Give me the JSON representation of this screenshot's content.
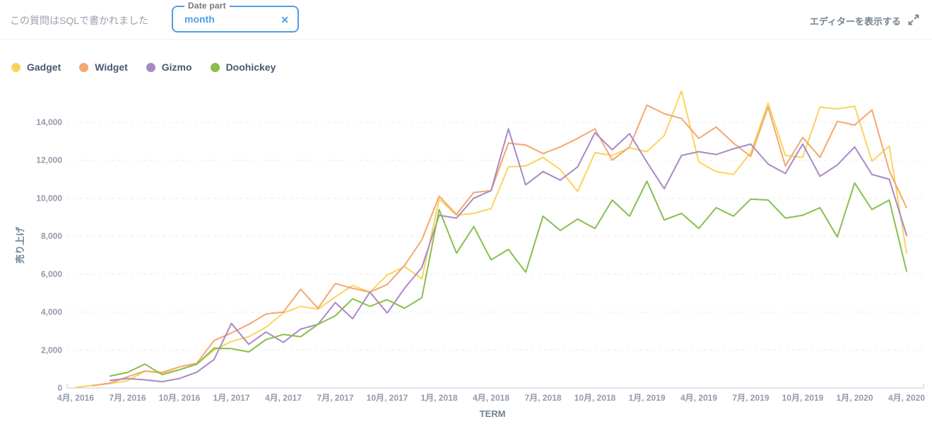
{
  "header": {
    "subtitle": "この質問はSQLで書かれました",
    "filter": {
      "label": "Date part",
      "value": "month",
      "clear_icon": "✕"
    },
    "editor_link": "エディターを表示する"
  },
  "colors": {
    "accent_blue": "#509EE3",
    "axis_text": "#949AAB",
    "axis_title": "#74838F",
    "legend_text": "#4C5773",
    "gridline": "#ECECEC",
    "axis_line": "#C6CAD2"
  },
  "chart_data": {
    "type": "line",
    "title": "",
    "xlabel": "TERM",
    "ylabel": "売り上げ",
    "ylim": [
      0,
      15800
    ],
    "yticks": [
      0,
      2000,
      4000,
      6000,
      8000,
      10000,
      12000,
      14000
    ],
    "grid": "horizontal-dashed",
    "legend_position": "top-left",
    "x_tick_every": 3,
    "x": [
      "4月, 2016",
      "5月, 2016",
      "6月, 2016",
      "7月, 2016",
      "8月, 2016",
      "9月, 2016",
      "10月, 2016",
      "11月, 2016",
      "12月, 2016",
      "1月, 2017",
      "2月, 2017",
      "3月, 2017",
      "4月, 2017",
      "5月, 2017",
      "6月, 2017",
      "7月, 2017",
      "8月, 2017",
      "9月, 2017",
      "10月, 2017",
      "11月, 2017",
      "12月, 2017",
      "1月, 2018",
      "2月, 2018",
      "3月, 2018",
      "4月, 2018",
      "5月, 2018",
      "6月, 2018",
      "7月, 2018",
      "8月, 2018",
      "9月, 2018",
      "10月, 2018",
      "11月, 2018",
      "12月, 2018",
      "1月, 2019",
      "2月, 2019",
      "3月, 2019",
      "4月, 2019",
      "5月, 2019",
      "6月, 2019",
      "7月, 2019",
      "8月, 2019",
      "9月, 2019",
      "10月, 2019",
      "11月, 2019",
      "12月, 2019",
      "1月, 2020",
      "2月, 2020",
      "3月, 2020",
      "4月, 2020"
    ],
    "series": [
      {
        "name": "Gadget",
        "color": "#F9D45C",
        "values": [
          25,
          140,
          230,
          380,
          890,
          780,
          960,
          1250,
          2000,
          2450,
          2700,
          3200,
          3950,
          4300,
          4150,
          4800,
          5400,
          5050,
          5950,
          6400,
          5750,
          9950,
          9100,
          9200,
          9450,
          11650,
          11700,
          12150,
          11500,
          10350,
          12400,
          12250,
          12650,
          12450,
          13300,
          15650,
          11900,
          11400,
          11250,
          12400,
          15000,
          12250,
          12150,
          14800,
          14700,
          14850,
          11950,
          12750,
          7100
        ]
      },
      {
        "name": "Widget",
        "color": "#F2A86F",
        "values": [
          null,
          120,
          260,
          590,
          890,
          820,
          1110,
          1300,
          2500,
          2900,
          3350,
          3900,
          4000,
          5200,
          4200,
          5500,
          5250,
          5050,
          5450,
          6450,
          7800,
          10100,
          9150,
          10300,
          10400,
          12900,
          12800,
          12350,
          12700,
          13150,
          13650,
          12000,
          12700,
          14900,
          14450,
          14200,
          13150,
          13750,
          12900,
          12200,
          14800,
          11700,
          13200,
          12150,
          14050,
          13850,
          14650,
          11450,
          9500
        ]
      },
      {
        "name": "Gizmo",
        "color": "#A989C5",
        "values": [
          null,
          null,
          400,
          500,
          430,
          330,
          500,
          830,
          1500,
          3400,
          2300,
          2950,
          2400,
          3100,
          3350,
          4500,
          3650,
          5050,
          3950,
          5250,
          6350,
          9100,
          8950,
          10000,
          10400,
          13650,
          10700,
          11400,
          10950,
          11650,
          13450,
          12550,
          13400,
          11900,
          10500,
          12250,
          12450,
          12300,
          12600,
          12850,
          11800,
          11300,
          12850,
          11150,
          11750,
          12700,
          11250,
          11000,
          8050
        ]
      },
      {
        "name": "Doohickey",
        "color": "#88BF4D",
        "values": [
          null,
          null,
          630,
          820,
          1260,
          700,
          960,
          1250,
          2100,
          2070,
          1900,
          2550,
          2820,
          2700,
          3350,
          3800,
          4700,
          4300,
          4650,
          4200,
          4750,
          9400,
          7100,
          8500,
          6750,
          7300,
          6100,
          9050,
          8300,
          8900,
          8400,
          9900,
          9050,
          10900,
          8850,
          9200,
          8400,
          9500,
          9050,
          9950,
          9900,
          8950,
          9100,
          9500,
          7950,
          10800,
          9400,
          9900,
          6150
        ]
      }
    ]
  }
}
